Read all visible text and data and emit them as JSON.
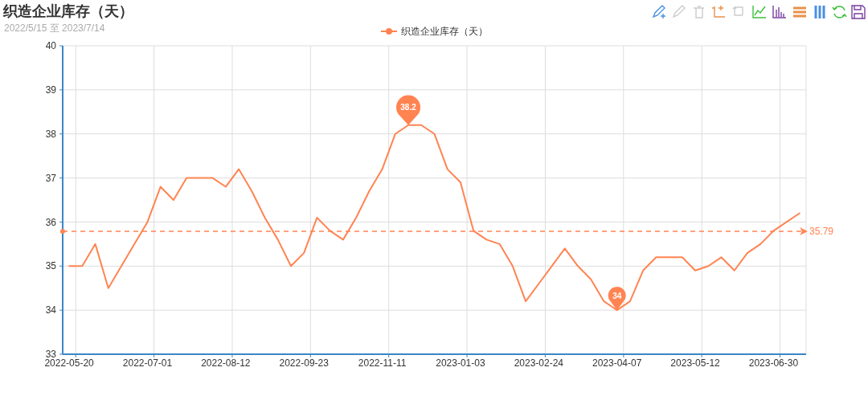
{
  "chart_data": {
    "type": "line",
    "title": "织造企业库存（天）",
    "subtitle": "2022/5/15 至 2023/7/14",
    "categories": [
      "2022-05-20",
      null,
      null,
      null,
      null,
      null,
      "2022-07-01",
      null,
      null,
      null,
      null,
      null,
      "2022-08-12",
      null,
      null,
      null,
      null,
      null,
      "2022-09-23",
      null,
      null,
      null,
      null,
      null,
      "2022-11-11",
      null,
      null,
      null,
      null,
      null,
      "2023-01-03",
      null,
      null,
      null,
      null,
      null,
      "2023-02-24",
      null,
      null,
      null,
      null,
      null,
      "2023-04-07",
      null,
      null,
      null,
      null,
      null,
      "2023-05-12",
      null,
      null,
      null,
      null,
      null,
      "2023-06-30",
      null,
      null
    ],
    "series": [
      {
        "name": "织造企业库存（天）",
        "color": "#ff8452",
        "values": [
          35.0,
          35.0,
          35.5,
          34.5,
          35.0,
          35.5,
          36.0,
          36.8,
          36.5,
          37.0,
          37.0,
          37.0,
          36.8,
          37.2,
          36.7,
          36.1,
          35.6,
          35.0,
          35.3,
          36.1,
          35.8,
          35.6,
          36.1,
          36.7,
          37.2,
          38.0,
          38.2,
          38.2,
          38.0,
          37.2,
          36.9,
          35.8,
          35.6,
          35.5,
          35.0,
          34.2,
          34.6,
          35.0,
          35.4,
          35.0,
          34.7,
          34.2,
          34.0,
          34.2,
          34.9,
          35.2,
          35.2,
          35.2,
          34.9,
          35.0,
          35.2,
          34.9,
          35.3,
          35.5,
          35.8,
          36.0,
          36.2
        ]
      }
    ],
    "ylim": [
      33,
      40
    ],
    "yticks": [
      33,
      34,
      35,
      36,
      37,
      38,
      39,
      40
    ],
    "grid": true,
    "legend": "top",
    "line_style": "solid",
    "ref_lines": [
      {
        "axis": "y",
        "value": 35.79,
        "label": "35.79",
        "line_style": "dashed"
      }
    ],
    "annotations": [
      {
        "text": "38.2",
        "y": 38.2
      },
      {
        "text": "34",
        "y": 34
      }
    ]
  }
}
